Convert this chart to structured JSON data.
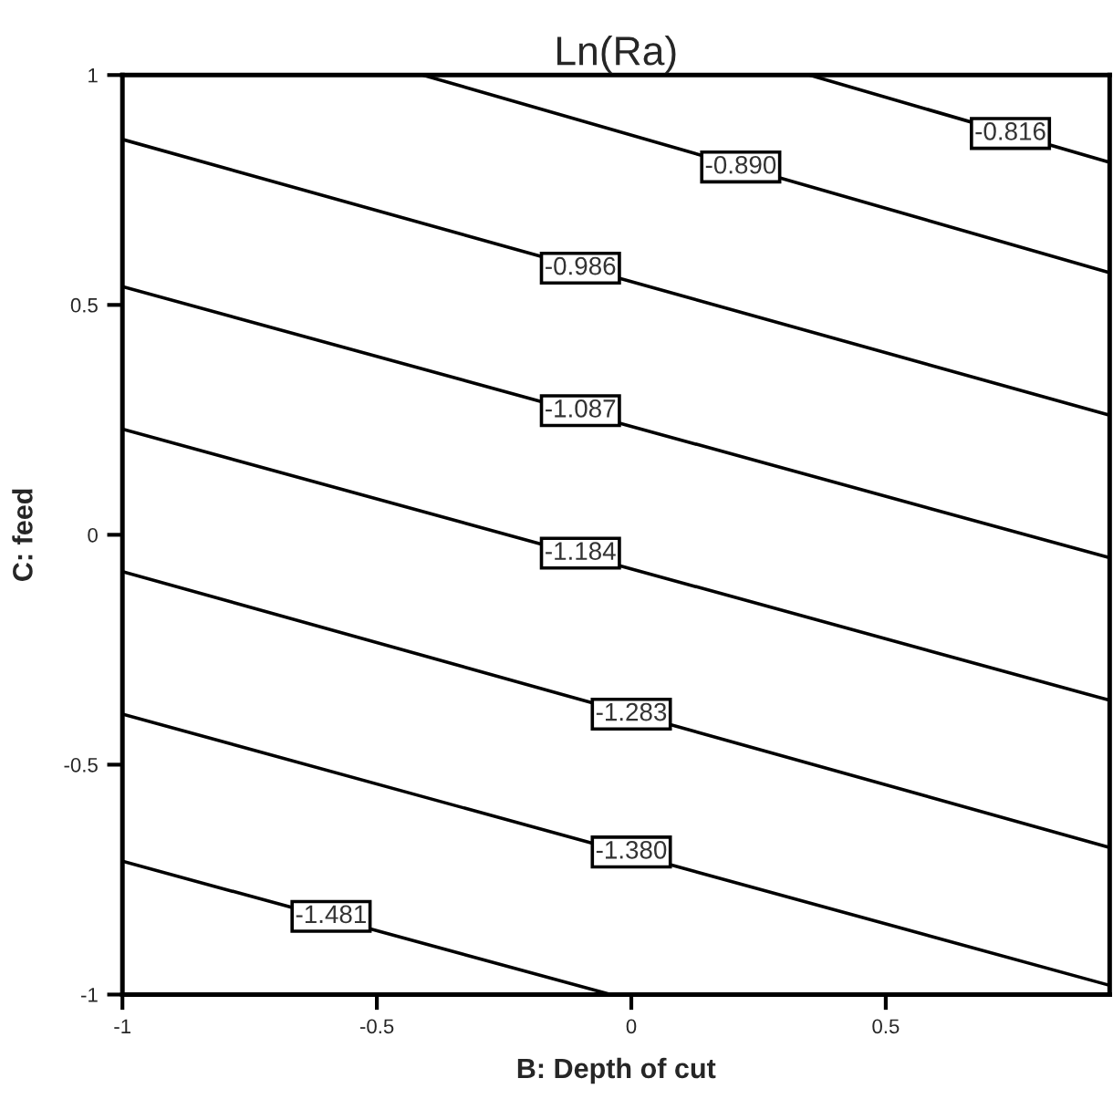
{
  "chart_data": {
    "type": "line",
    "title": "Ln(Ra)",
    "xlabel": "B: Depth of cut",
    "ylabel": "C: feed",
    "xlim": [
      -1,
      0.94
    ],
    "ylim": [
      -1,
      1
    ],
    "xticks": [
      -1,
      -0.5,
      0,
      0.5
    ],
    "yticks": [
      -1,
      -0.5,
      0,
      0.5,
      1
    ],
    "grid": false,
    "legend": false,
    "series": [
      {
        "color": "#000000",
        "x": [
          0.35,
          0.94
        ],
        "values": [
          1,
          0.81
        ]
      },
      {
        "color": "#000000",
        "x": [
          -0.41,
          0.94
        ],
        "values": [
          1,
          0.57
        ]
      },
      {
        "color": "#000000",
        "x": [
          -1,
          0.94
        ],
        "values": [
          0.86,
          0.26
        ]
      },
      {
        "color": "#000000",
        "x": [
          -1,
          0.94
        ],
        "values": [
          0.54,
          -0.05
        ]
      },
      {
        "color": "#000000",
        "x": [
          -1,
          0.94
        ],
        "values": [
          0.23,
          -0.36
        ]
      },
      {
        "color": "#000000",
        "x": [
          -1,
          0.94
        ],
        "values": [
          -0.08,
          -0.68
        ]
      },
      {
        "color": "#000000",
        "x": [
          -1,
          0.94
        ],
        "values": [
          -0.39,
          -0.98
        ]
      },
      {
        "color": "#000000",
        "x": [
          -1,
          -0.04
        ],
        "values": [
          -0.71,
          -1
        ]
      }
    ],
    "annotations": [
      {
        "text": "-0.816",
        "x": 0.745,
        "y": 0.873
      },
      {
        "text": "-0.890",
        "x": 0.215,
        "y": 0.8
      },
      {
        "text": "-0.986",
        "x": -0.1,
        "y": 0.58
      },
      {
        "text": "-1.087",
        "x": -0.1,
        "y": 0.27
      },
      {
        "text": "-1.184",
        "x": -0.1,
        "y": -0.04
      },
      {
        "text": "-1.283",
        "x": 0.0,
        "y": -0.39
      },
      {
        "text": "-1.380",
        "x": 0.0,
        "y": -0.69
      },
      {
        "text": "-1.481",
        "x": -0.59,
        "y": -0.83
      }
    ]
  }
}
